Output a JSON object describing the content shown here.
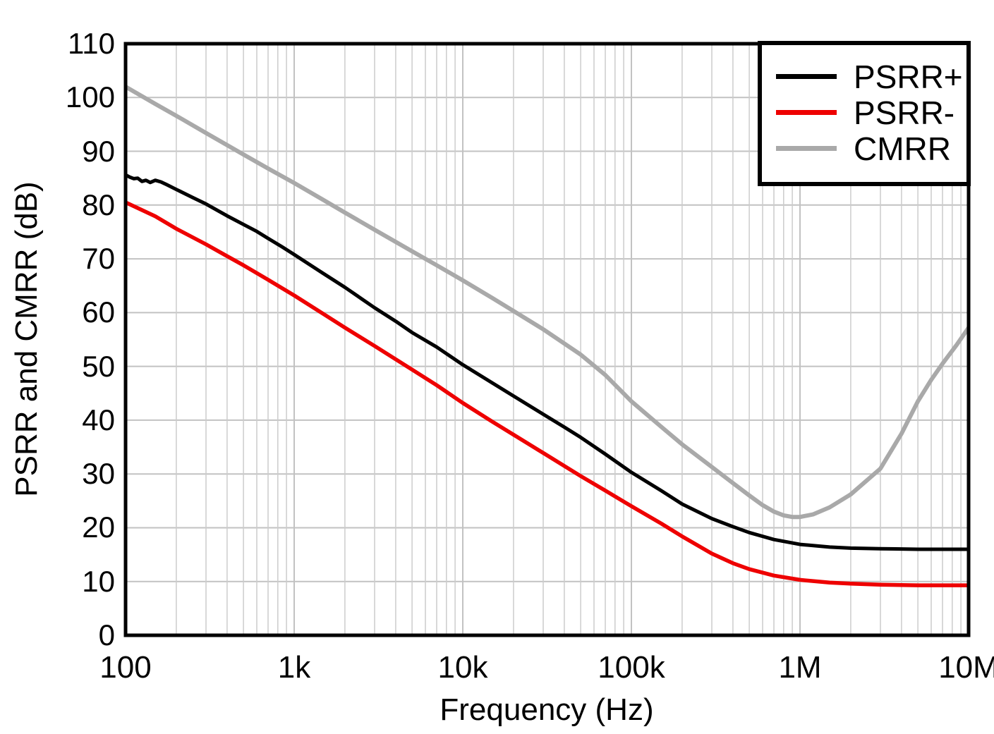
{
  "figure": {
    "background": "#ffffff",
    "axis_color": "#000000",
    "grid_minor_color": "#cccccc",
    "grid_major_color": "#c2c2c2"
  },
  "chart_data": {
    "type": "line",
    "title": "",
    "xlabel": "Frequency (Hz)",
    "ylabel": "PSRR and CMRR (dB)",
    "x_scale": "log",
    "xlim": [
      100,
      10000000
    ],
    "ylim": [
      0,
      110
    ],
    "grid": "on, log minor verticals + 10 dB horizontals",
    "legend_position": "top-right",
    "y_ticks": [
      0,
      10,
      20,
      30,
      40,
      50,
      60,
      70,
      80,
      90,
      100,
      110
    ],
    "x_ticks": [
      {
        "f": 100,
        "label": "100"
      },
      {
        "f": 1000,
        "label": "1k"
      },
      {
        "f": 10000,
        "label": "10k"
      },
      {
        "f": 100000,
        "label": "100k"
      },
      {
        "f": 1000000,
        "label": "1M"
      },
      {
        "f": 10000000,
        "label": "10M"
      }
    ],
    "series": [
      {
        "name": "PSRR+",
        "color": "#000000",
        "width": 5,
        "points": [
          [
            100,
            85.6
          ],
          [
            106,
            85.2
          ],
          [
            112,
            84.9
          ],
          [
            118,
            85.0
          ],
          [
            125,
            84.4
          ],
          [
            132,
            84.6
          ],
          [
            140,
            84.2
          ],
          [
            150,
            84.6
          ],
          [
            162,
            84.3
          ],
          [
            175,
            83.8
          ],
          [
            200,
            82.9
          ],
          [
            250,
            81.4
          ],
          [
            300,
            80.2
          ],
          [
            400,
            78.0
          ],
          [
            500,
            76.4
          ],
          [
            600,
            75.1
          ],
          [
            700,
            73.8
          ],
          [
            850,
            72.2
          ],
          [
            1000,
            70.8
          ],
          [
            1500,
            67.2
          ],
          [
            2000,
            64.7
          ],
          [
            3000,
            60.9
          ],
          [
            4000,
            58.4
          ],
          [
            5000,
            56.3
          ],
          [
            7000,
            53.6
          ],
          [
            10000,
            50.3
          ],
          [
            15000,
            46.9
          ],
          [
            20000,
            44.5
          ],
          [
            30000,
            41.1
          ],
          [
            40000,
            38.7
          ],
          [
            50000,
            36.8
          ],
          [
            70000,
            33.7
          ],
          [
            100000,
            30.3
          ],
          [
            150000,
            26.9
          ],
          [
            200000,
            24.4
          ],
          [
            300000,
            21.7
          ],
          [
            400000,
            20.2
          ],
          [
            500000,
            19.1
          ],
          [
            700000,
            17.8
          ],
          [
            1000000,
            16.9
          ],
          [
            1500000,
            16.4
          ],
          [
            2000000,
            16.2
          ],
          [
            3000000,
            16.1
          ],
          [
            5000000,
            16.0
          ],
          [
            7000000,
            16.0
          ],
          [
            10000000,
            16.0
          ]
        ]
      },
      {
        "name": "PSRR-",
        "color": "#ee0000",
        "width": 5.5,
        "points": [
          [
            100,
            80.5
          ],
          [
            150,
            77.9
          ],
          [
            200,
            75.6
          ],
          [
            300,
            72.7
          ],
          [
            400,
            70.5
          ],
          [
            500,
            68.8
          ],
          [
            700,
            66.1
          ],
          [
            1000,
            63.2
          ],
          [
            1500,
            59.7
          ],
          [
            2000,
            57.2
          ],
          [
            3000,
            53.8
          ],
          [
            5000,
            49.4
          ],
          [
            7000,
            46.5
          ],
          [
            10000,
            43.2
          ],
          [
            15000,
            39.7
          ],
          [
            20000,
            37.3
          ],
          [
            30000,
            33.9
          ],
          [
            50000,
            29.6
          ],
          [
            70000,
            26.9
          ],
          [
            100000,
            24.0
          ],
          [
            150000,
            20.8
          ],
          [
            200000,
            18.4
          ],
          [
            300000,
            15.2
          ],
          [
            400000,
            13.4
          ],
          [
            500000,
            12.3
          ],
          [
            700000,
            11.1
          ],
          [
            1000000,
            10.3
          ],
          [
            1500000,
            9.8
          ],
          [
            2000000,
            9.6
          ],
          [
            3000000,
            9.4
          ],
          [
            5000000,
            9.3
          ],
          [
            7000000,
            9.3
          ],
          [
            10000000,
            9.3
          ]
        ]
      },
      {
        "name": "CMRR",
        "color": "#a9a9a9",
        "width": 6,
        "points": [
          [
            100,
            102.0
          ],
          [
            150,
            98.8
          ],
          [
            200,
            96.6
          ],
          [
            300,
            93.4
          ],
          [
            500,
            89.4
          ],
          [
            700,
            86.8
          ],
          [
            1000,
            84.1
          ],
          [
            1500,
            80.9
          ],
          [
            2000,
            78.6
          ],
          [
            3000,
            75.4
          ],
          [
            5000,
            71.4
          ],
          [
            7000,
            68.8
          ],
          [
            10000,
            66.0
          ],
          [
            15000,
            62.7
          ],
          [
            20000,
            60.3
          ],
          [
            30000,
            56.9
          ],
          [
            50000,
            52.2
          ],
          [
            70000,
            48.4
          ],
          [
            100000,
            43.5
          ],
          [
            150000,
            38.8
          ],
          [
            200000,
            35.5
          ],
          [
            300000,
            31.3
          ],
          [
            400000,
            28.3
          ],
          [
            500000,
            26.0
          ],
          [
            600000,
            24.2
          ],
          [
            700000,
            23.0
          ],
          [
            800000,
            22.3
          ],
          [
            900000,
            22.0
          ],
          [
            1000000,
            22.0
          ],
          [
            1200000,
            22.5
          ],
          [
            1500000,
            23.8
          ],
          [
            2000000,
            26.2
          ],
          [
            3000000,
            31.0
          ],
          [
            4000000,
            37.5
          ],
          [
            5000000,
            43.5
          ],
          [
            6000000,
            47.5
          ],
          [
            7000000,
            50.5
          ],
          [
            8500000,
            54.0
          ],
          [
            10000000,
            57.2
          ]
        ]
      }
    ]
  }
}
